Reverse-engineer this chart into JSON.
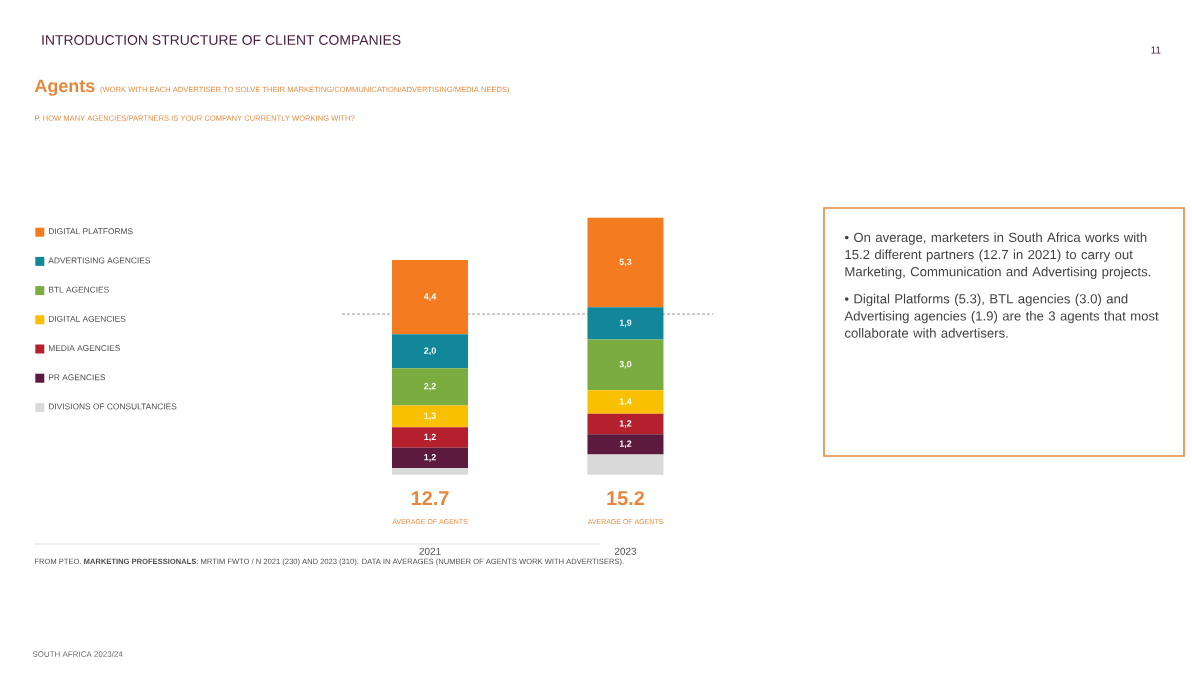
{
  "chart_data": {
    "type": "bar",
    "stacked": true,
    "title": "Agents",
    "subtitle": "(WORK WITH EACH ADVERTISER TO SOLVE THEIR MARKETING/COMMUNICATION/ADVERTISING/MEDIA NEEDS)",
    "categories": [
      "2021",
      "2023"
    ],
    "series": [
      {
        "name": "DIVISIONS OF CONSULTANCIES",
        "color": "#d9d9d9",
        "values": [
          0.4,
          1.2
        ]
      },
      {
        "name": "PR AGENCIES",
        "color": "#5b1a3e",
        "values": [
          1.2,
          1.2
        ],
        "value_labels": [
          "1,2",
          "1,2"
        ]
      },
      {
        "name": "MEDIA AGENCIES",
        "color": "#b5202e",
        "values": [
          1.2,
          1.2
        ],
        "value_labels": [
          "1,2",
          "1,2"
        ]
      },
      {
        "name": "DIGITAL AGENCIES",
        "color": "#f9c000",
        "values": [
          1.3,
          1.4
        ],
        "value_labels": [
          "1,3",
          "1,4"
        ]
      },
      {
        "name": "BTL AGENCIES",
        "color": "#7aac3f",
        "values": [
          2.2,
          3.0
        ],
        "value_labels": [
          "2,2",
          "3,0"
        ]
      },
      {
        "name": "ADVERTISING AGENCIES",
        "color": "#12879a",
        "values": [
          2.0,
          1.9
        ],
        "value_labels": [
          "2,0",
          "1,9"
        ]
      },
      {
        "name": "DIGITAL PLATFORMS",
        "color": "#f47b20",
        "values": [
          4.4,
          5.3
        ],
        "value_labels": [
          "4,4",
          "5,3"
        ]
      }
    ],
    "totals": [
      "12.7",
      "15.2"
    ],
    "ref_lines": [
      {
        "axis": "y",
        "value": 9.5,
        "color": "#7f7f7f",
        "line_style": "dashed"
      }
    ],
    "legend": "left",
    "annotations": [
      "INTRODUCTION STRUCTURE OF CLIENT COMPANIES",
      "11",
      "P. HOW MANY AGENCIES/PARTNERS IS YOUR COMPANY CURRENTLY WORKING WITH?",
      "AVERAGE OF AGENTS",
      "AVERAGE OF AGENTS",
      "• On average, marketers in South Africa works with 15.2 different partners (12.7 in 2021) to carry out Marketing, Communication and Advertising projects.",
      "• Digital Platforms (5.3), BTL agencies (3.0) and Advertising agencies (1.9) are the 3 agents that most collaborate with advertisers.",
      "FROM PTEO. **MARKETING PROFESSIONALS**: MRTIM FWTO / N 2021 (230) AND 2023 (310). DATA IN AVERAGES (NUMBER OF AGENTS WORK WITH ADVERTISERS).",
      "SOUTH AFRICA 2023/24"
    ]
  }
}
